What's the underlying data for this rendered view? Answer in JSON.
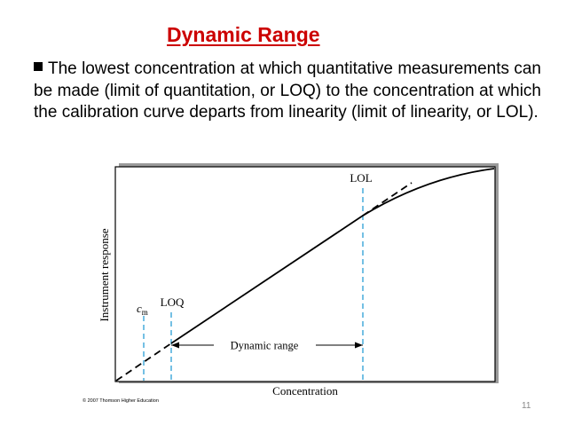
{
  "slide": {
    "title": "Dynamic Range",
    "body": "The lowest concentration at which quantitative measurements can be made (limit of quantitation, or LOQ) to the concentration at which the calibration curve departs from linearity (limit of linearity, or LOL).",
    "page_number": "11"
  },
  "figure": {
    "y_axis_label": "Instrument response",
    "x_axis_label": "Concentration",
    "lol_label": "LOL",
    "loq_label": "LOQ",
    "cm_label_main": "c",
    "cm_label_sub": "m",
    "dynamic_range_label": "Dynamic range",
    "copyright": "© 2007 Thomson Higher Education",
    "colors": {
      "marker_lines": "#2a9fd6",
      "curve": "#000000",
      "frame_shadow": "#9a9a9a"
    }
  }
}
